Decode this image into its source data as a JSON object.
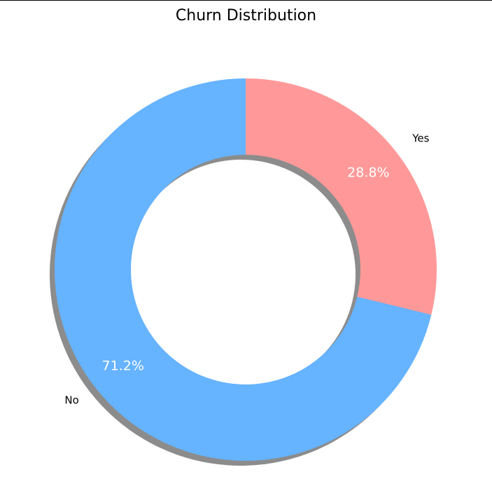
{
  "chart_data": {
    "type": "pie",
    "title": "Churn Distribution",
    "donut": true,
    "shadow": true,
    "start_angle_deg": 90,
    "direction": "clockwise",
    "slices": [
      {
        "label": "Yes",
        "value": 28.8,
        "pct_label": "28.8%",
        "color": "#ff9999"
      },
      {
        "label": "No",
        "value": 71.2,
        "pct_label": "71.2%",
        "color": "#66b3ff"
      }
    ]
  }
}
